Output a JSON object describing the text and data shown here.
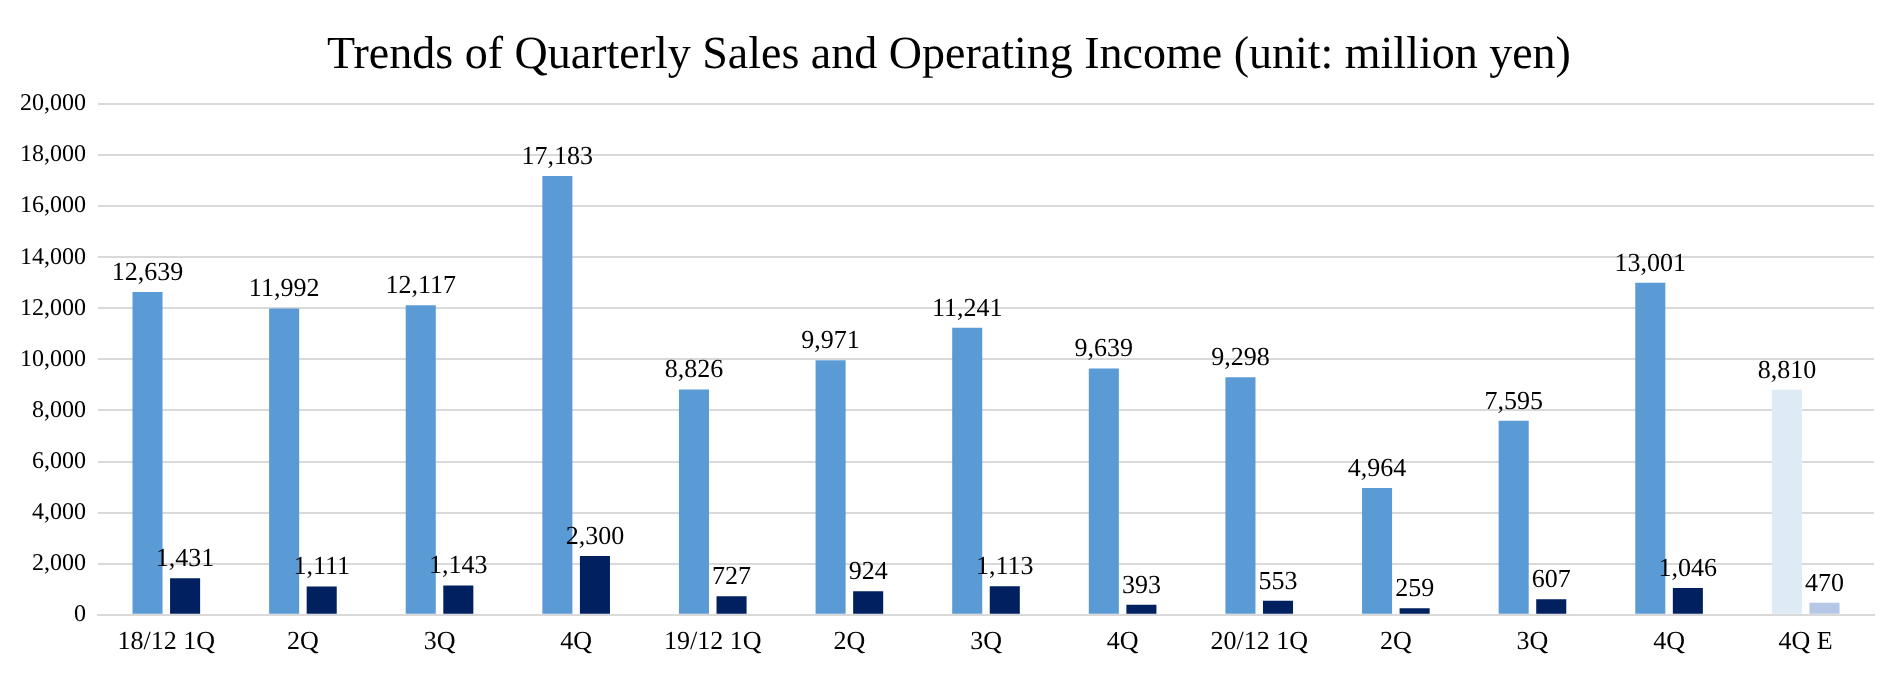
{
  "chart_data": {
    "type": "bar",
    "title": "Trends of Quarterly Sales and Operating Income (unit: million yen)",
    "categories": [
      "18/12 1Q",
      "2Q",
      "3Q",
      "4Q",
      "19/12 1Q",
      "2Q",
      "3Q",
      "4Q",
      "20/12 1Q",
      "2Q",
      "3Q",
      "4Q",
      "4Q E"
    ],
    "series": [
      {
        "colors": [
          "#5b9bd5",
          "#5b9bd5",
          "#5b9bd5",
          "#5b9bd5",
          "#5b9bd5",
          "#5b9bd5",
          "#5b9bd5",
          "#5b9bd5",
          "#5b9bd5",
          "#5b9bd5",
          "#5b9bd5",
          "#5b9bd5",
          "#deebf7"
        ],
        "values": [
          12639,
          11992,
          12117,
          17183,
          8826,
          9971,
          11241,
          9639,
          9298,
          4964,
          7595,
          13001,
          8810
        ],
        "value_labels": [
          "12,639",
          "11,992",
          "12,117",
          "17,183",
          "8,826",
          "9,971",
          "11,241",
          "9,639",
          "9,298",
          "4,964",
          "7,595",
          "13,001",
          "8,810"
        ]
      },
      {
        "colors": [
          "#002060",
          "#002060",
          "#002060",
          "#002060",
          "#002060",
          "#002060",
          "#002060",
          "#002060",
          "#002060",
          "#002060",
          "#002060",
          "#002060",
          "#b4c7e7"
        ],
        "values": [
          1431,
          1111,
          1143,
          2300,
          727,
          924,
          1113,
          393,
          553,
          259,
          607,
          1046,
          470
        ],
        "value_labels": [
          "1,431",
          "1,111",
          "1,143",
          "2,300",
          "727",
          "924",
          "1,113",
          "393",
          "553",
          "259",
          "607",
          "1,046",
          "470"
        ]
      }
    ],
    "ylim": [
      0,
      20000
    ],
    "yticks": [
      {
        "value": 0,
        "label": "0"
      },
      {
        "value": 2000,
        "label": "2,000"
      },
      {
        "value": 4000,
        "label": "4,000"
      },
      {
        "value": 6000,
        "label": "6,000"
      },
      {
        "value": 8000,
        "label": "8,000"
      },
      {
        "value": 10000,
        "label": "10,000"
      },
      {
        "value": 12000,
        "label": "12,000"
      },
      {
        "value": 14000,
        "label": "14,000"
      },
      {
        "value": 16000,
        "label": "16,000"
      },
      {
        "value": 18000,
        "label": "18,000"
      },
      {
        "value": 20000,
        "label": "20,000"
      }
    ],
    "grid": "y",
    "legend": false
  }
}
